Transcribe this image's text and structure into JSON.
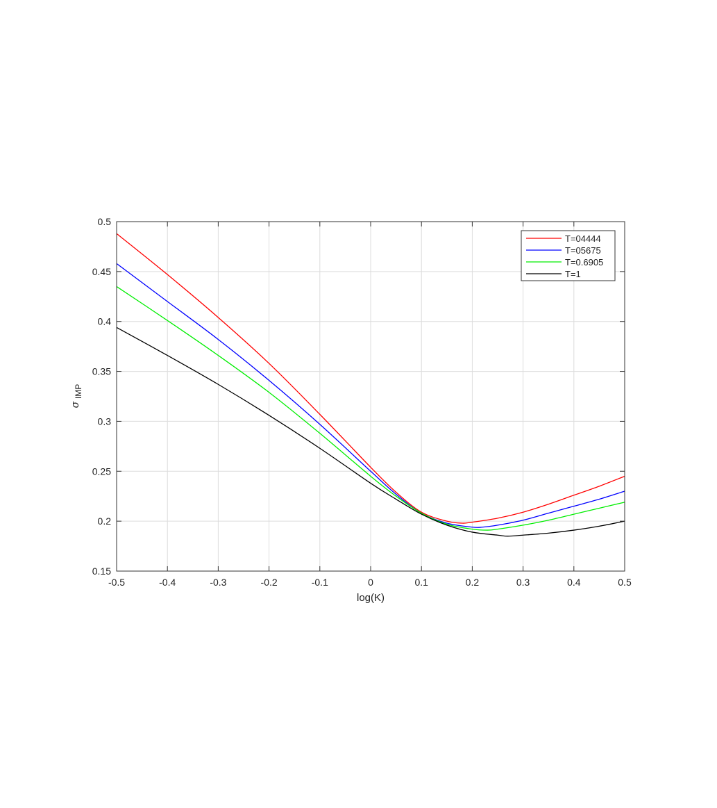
{
  "chart_data": {
    "type": "line",
    "title": "",
    "xlabel": "log(K)",
    "ylabel": {
      "symbol": "σ",
      "subscript": "IMP"
    },
    "xlim": [
      -0.5,
      0.5
    ],
    "ylim": [
      0.15,
      0.5
    ],
    "xticks": [
      -0.5,
      -0.4,
      -0.3,
      -0.2,
      -0.1,
      0,
      0.1,
      0.2,
      0.3,
      0.4,
      0.5
    ],
    "xtick_labels": [
      "-0.5",
      "-0.4",
      "-0.3",
      "-0.2",
      "-0.1",
      "0",
      "0.1",
      "0.2",
      "0.3",
      "0.4",
      "0.5"
    ],
    "yticks": [
      0.15,
      0.2,
      0.25,
      0.3,
      0.35,
      0.4,
      0.45,
      0.5
    ],
    "ytick_labels": [
      "0.15",
      "0.2",
      "0.25",
      "0.3",
      "0.35",
      "0.4",
      "0.45",
      "0.5"
    ],
    "grid": true,
    "legend_position": "top-right",
    "series": [
      {
        "name": "T=04444",
        "color": "#ff0000",
        "x": [
          -0.5,
          -0.4,
          -0.3,
          -0.2,
          -0.1,
          0,
          0.05,
          0.1,
          0.15,
          0.18,
          0.2,
          0.25,
          0.3,
          0.35,
          0.4,
          0.45,
          0.5
        ],
        "y": [
          0.488,
          0.447,
          0.404,
          0.358,
          0.307,
          0.254,
          0.229,
          0.209,
          0.2,
          0.198,
          0.199,
          0.203,
          0.209,
          0.217,
          0.226,
          0.235,
          0.245
        ]
      },
      {
        "name": "T=05675",
        "color": "#0000ff",
        "x": [
          -0.5,
          -0.4,
          -0.3,
          -0.2,
          -0.1,
          0,
          0.05,
          0.1,
          0.15,
          0.2,
          0.22,
          0.25,
          0.3,
          0.35,
          0.4,
          0.45,
          0.5
        ],
        "y": [
          0.458,
          0.42,
          0.382,
          0.341,
          0.297,
          0.25,
          0.227,
          0.208,
          0.198,
          0.194,
          0.194,
          0.196,
          0.201,
          0.208,
          0.215,
          0.222,
          0.23
        ]
      },
      {
        "name": "T=0.6905",
        "color": "#00ee00",
        "x": [
          -0.5,
          -0.4,
          -0.3,
          -0.2,
          -0.1,
          0,
          0.05,
          0.1,
          0.15,
          0.2,
          0.23,
          0.25,
          0.3,
          0.35,
          0.4,
          0.45,
          0.5
        ],
        "y": [
          0.435,
          0.401,
          0.366,
          0.329,
          0.288,
          0.245,
          0.225,
          0.208,
          0.197,
          0.192,
          0.191,
          0.192,
          0.196,
          0.201,
          0.207,
          0.213,
          0.219
        ]
      },
      {
        "name": "T=1",
        "color": "#000000",
        "x": [
          -0.5,
          -0.4,
          -0.3,
          -0.2,
          -0.1,
          0,
          0.05,
          0.1,
          0.15,
          0.2,
          0.25,
          0.27,
          0.3,
          0.35,
          0.4,
          0.45,
          0.5
        ],
        "y": [
          0.394,
          0.366,
          0.337,
          0.306,
          0.273,
          0.238,
          0.222,
          0.207,
          0.196,
          0.189,
          0.186,
          0.185,
          0.186,
          0.188,
          0.191,
          0.195,
          0.2
        ]
      }
    ]
  }
}
